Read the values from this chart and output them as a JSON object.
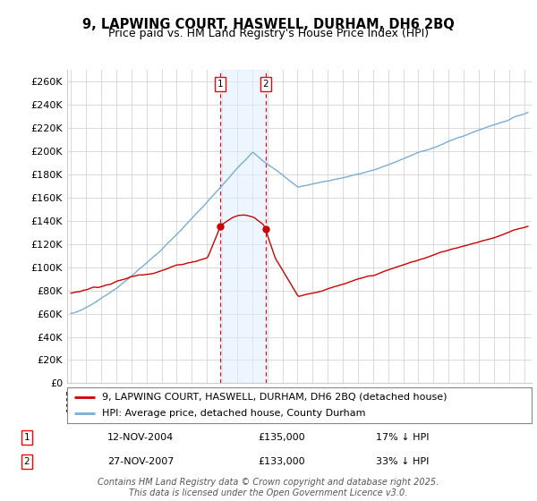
{
  "title": "9, LAPWING COURT, HASWELL, DURHAM, DH6 2BQ",
  "subtitle": "Price paid vs. HM Land Registry's House Price Index (HPI)",
  "ylim": [
    0,
    270000
  ],
  "yticks": [
    0,
    20000,
    40000,
    60000,
    80000,
    100000,
    120000,
    140000,
    160000,
    180000,
    200000,
    220000,
    240000,
    260000
  ],
  "ytick_labels": [
    "£0",
    "£20K",
    "£40K",
    "£60K",
    "£80K",
    "£100K",
    "£120K",
    "£140K",
    "£160K",
    "£180K",
    "£200K",
    "£220K",
    "£240K",
    "£260K"
  ],
  "sale1_price": 135000,
  "sale1_display": "12-NOV-2004",
  "sale1_pct": "17% ↓ HPI",
  "sale2_price": 133000,
  "sale2_display": "27-NOV-2007",
  "sale2_pct": "33% ↓ HPI",
  "legend_property": "9, LAPWING COURT, HASWELL, DURHAM, DH6 2BQ (detached house)",
  "legend_hpi": "HPI: Average price, detached house, County Durham",
  "footer": "Contains HM Land Registry data © Crown copyright and database right 2025.\nThis data is licensed under the Open Government Licence v3.0.",
  "property_color": "#cc0000",
  "hpi_color": "#7aadd4",
  "shade_color": "#ddeeff",
  "grid_color": "#cccccc",
  "title_fontsize": 10.5,
  "subtitle_fontsize": 9,
  "tick_fontsize": 8,
  "legend_fontsize": 8,
  "footer_fontsize": 7
}
